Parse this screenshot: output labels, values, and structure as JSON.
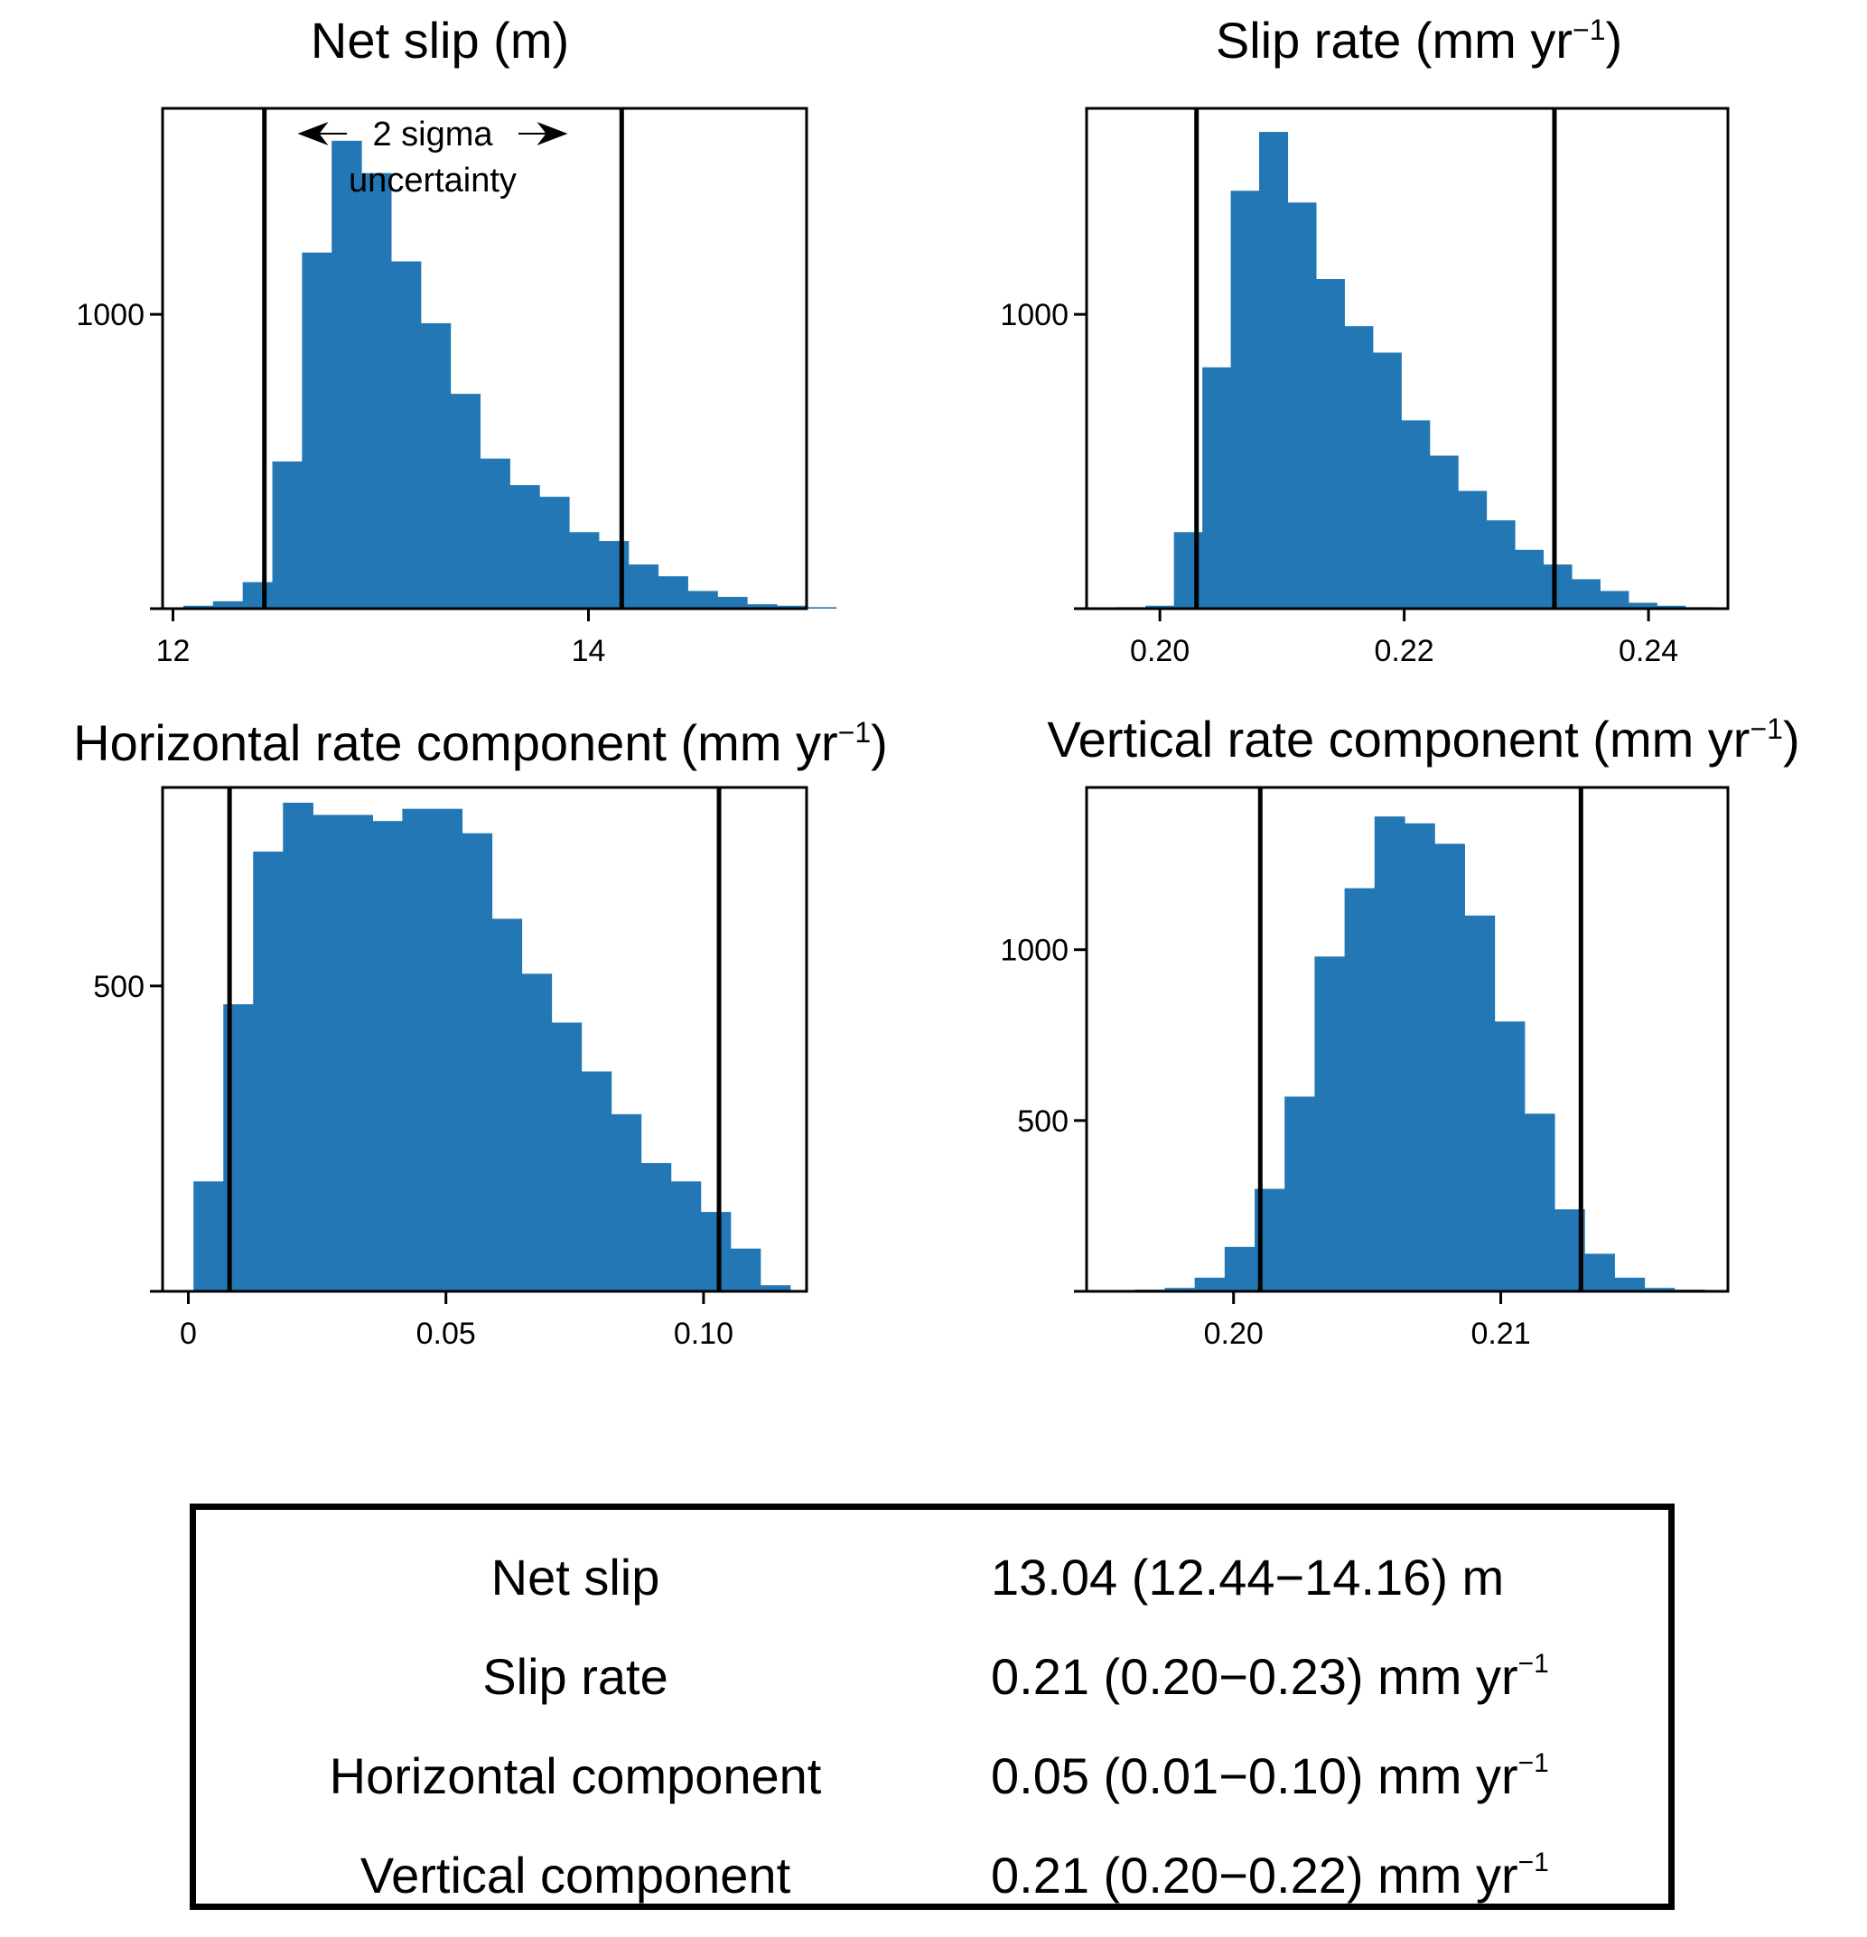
{
  "chart_data": [
    {
      "type": "bar",
      "title": "Net slip (m)",
      "xlabel": "",
      "ylabel": "",
      "bin_start": 12.05,
      "bin_width": 0.1428,
      "values": [
        10,
        25,
        90,
        500,
        1210,
        1590,
        1480,
        1180,
        970,
        730,
        510,
        420,
        380,
        260,
        230,
        150,
        110,
        60,
        40,
        15,
        10,
        5
      ],
      "xlim": [
        11.95,
        15.05
      ],
      "ylim": [
        0,
        1700
      ],
      "xticks": [
        {
          "value": 12,
          "label": "12"
        },
        {
          "value": 14,
          "label": "14"
        }
      ],
      "yticks": [
        {
          "value": 0,
          "label": ""
        },
        {
          "value": 1000,
          "label": "1000"
        }
      ],
      "vlines": [
        12.44,
        14.16
      ],
      "annotation": {
        "line1": "2 sigma",
        "line2": "uncertainty",
        "arrow_from": 12.6,
        "arrow_to": 13.9
      }
    },
    {
      "type": "bar",
      "title": "Slip rate (mm yr",
      "title_sup": "−1",
      "title_end": ")",
      "xlabel": "",
      "ylabel": "",
      "bin_start": 0.1965,
      "bin_width": 0.002325,
      "values": [
        5,
        10,
        260,
        820,
        1420,
        1620,
        1380,
        1120,
        960,
        870,
        640,
        520,
        400,
        300,
        200,
        150,
        100,
        60,
        20,
        10,
        5
      ],
      "xlim": [
        0.194,
        0.2465
      ],
      "ylim": [
        0,
        1700
      ],
      "xticks": [
        {
          "value": 0.2,
          "label": "0.20"
        },
        {
          "value": 0.22,
          "label": "0.22"
        },
        {
          "value": 0.24,
          "label": "0.24"
        }
      ],
      "yticks": [
        {
          "value": 0,
          "label": ""
        },
        {
          "value": 1000,
          "label": "1000"
        }
      ],
      "vlines": [
        0.203,
        0.2323
      ]
    },
    {
      "type": "bar",
      "title": "Horizontal rate component (mm yr",
      "title_sup": "−1",
      "title_end": ")",
      "xlabel": "",
      "ylabel": "",
      "bin_start": 0.001,
      "bin_width": 0.00579,
      "values": [
        180,
        470,
        720,
        800,
        780,
        780,
        770,
        790,
        790,
        750,
        610,
        520,
        440,
        360,
        290,
        210,
        180,
        130,
        70,
        10
      ],
      "xlim": [
        -0.005,
        0.12
      ],
      "ylim": [
        0,
        825
      ],
      "xticks": [
        {
          "value": 0,
          "label": "0"
        },
        {
          "value": 0.05,
          "label": "0.05"
        },
        {
          "value": 0.1,
          "label": "0.10"
        }
      ],
      "yticks": [
        {
          "value": 0,
          "label": ""
        },
        {
          "value": 500,
          "label": "500"
        }
      ],
      "vlines": [
        0.008,
        0.103
      ]
    },
    {
      "type": "bar",
      "title": "Vertical rate component (mm yr",
      "title_sup": "−1",
      "title_end": ")",
      "xlabel": "",
      "ylabel": "",
      "bin_start": 0.1963,
      "bin_width": 0.001122,
      "values": [
        5,
        10,
        40,
        130,
        300,
        570,
        980,
        1180,
        1390,
        1370,
        1310,
        1100,
        790,
        520,
        240,
        110,
        40,
        10,
        5
      ],
      "xlim": [
        0.1945,
        0.2185
      ],
      "ylim": [
        0,
        1475
      ],
      "xticks": [
        {
          "value": 0.2,
          "label": "0.20"
        },
        {
          "value": 0.21,
          "label": "0.21"
        }
      ],
      "yticks": [
        {
          "value": 0,
          "label": ""
        },
        {
          "value": 500,
          "label": "500"
        },
        {
          "value": 1000,
          "label": "1000"
        }
      ],
      "vlines": [
        0.201,
        0.213
      ]
    }
  ],
  "summary": {
    "rows": [
      {
        "label": "Net slip",
        "value": "13.04 (12.44−14.16) m",
        "sup": ""
      },
      {
        "label": "Slip rate",
        "value": "0.21 (0.20−0.23) mm yr",
        "sup": "−1"
      },
      {
        "label": "Horizontal component",
        "value": "0.05 (0.01−0.10) mm yr",
        "sup": "−1"
      },
      {
        "label": "Vertical component",
        "value": "0.21 (0.20−0.22) mm yr",
        "sup": "−1"
      }
    ]
  },
  "colors": {
    "bar": "#2277b4",
    "line": "#000000"
  }
}
